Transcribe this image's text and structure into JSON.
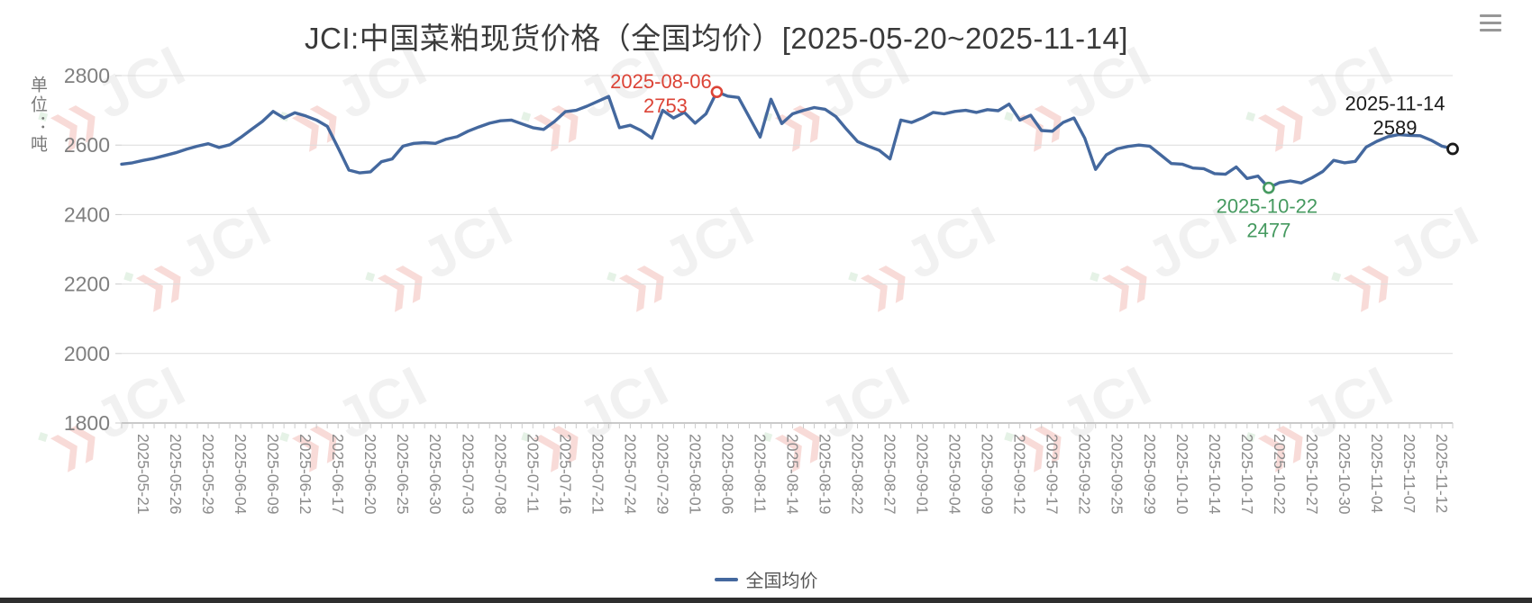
{
  "header": {
    "title": "JCI:中国菜粕现货价格（全国均价）[2025-05-20~2025-11-14]",
    "menu_icon": "hamburger-icon"
  },
  "legend": {
    "label": "全国均价",
    "marker_color": "#44689e"
  },
  "watermark": {
    "text": "JCI",
    "arrow_glyph": "❯❯",
    "accent_glyph": "◆"
  },
  "colors": {
    "line": "#44689e",
    "grid": "#dcdcdc",
    "axis": "#b8b8b8",
    "tick": "#cccccc",
    "y_label": "#7f7f7f",
    "x_label": "#8c8c8c",
    "title": "#3a3a3a",
    "max_annotation": "#dc4437",
    "min_annotation": "#469a60",
    "last_annotation": "#1a1a1a"
  },
  "chart_data": {
    "type": "line",
    "title": "JCI:中国菜粕现货价格（全国均价）[2025-05-20~2025-11-14]",
    "legend_position": "bottom",
    "grid": true,
    "y_axis": {
      "unit": "单位：吨",
      "min": 1800,
      "max": 2800,
      "step": 200,
      "tick_labels": [
        "1800",
        "2000",
        "2200",
        "2400",
        "2600",
        "2800"
      ]
    },
    "x_tick_labels": [
      "2025-05-21",
      "2025-05-26",
      "2025-05-29",
      "2025-06-04",
      "2025-06-09",
      "2025-06-12",
      "2025-06-17",
      "2025-06-20",
      "2025-06-25",
      "2025-06-30",
      "2025-07-03",
      "2025-07-08",
      "2025-07-11",
      "2025-07-16",
      "2025-07-21",
      "2025-07-24",
      "2025-07-29",
      "2025-08-01",
      "2025-08-06",
      "2025-08-11",
      "2025-08-14",
      "2025-08-19",
      "2025-08-22",
      "2025-08-27",
      "2025-09-01",
      "2025-09-04",
      "2025-09-09",
      "2025-09-12",
      "2025-09-17",
      "2025-09-22",
      "2025-09-25",
      "2025-09-29",
      "2025-10-10",
      "2025-10-14",
      "2025-10-17",
      "2025-10-22",
      "2025-10-27",
      "2025-10-30",
      "2025-11-04",
      "2025-11-07",
      "2025-11-12"
    ],
    "x_label_start_index": 1,
    "x_label_step": 3,
    "series": [
      {
        "name": "全国均价",
        "color": "#44689e",
        "values": [
          2545,
          2549,
          2556,
          2562,
          2570,
          2578,
          2588,
          2597,
          2604,
          2593,
          2601,
          2622,
          2645,
          2668,
          2697,
          2678,
          2693,
          2684,
          2672,
          2654,
          2592,
          2528,
          2520,
          2523,
          2552,
          2560,
          2597,
          2605,
          2607,
          2605,
          2617,
          2624,
          2640,
          2652,
          2663,
          2670,
          2672,
          2661,
          2650,
          2645,
          2668,
          2696,
          2700,
          2712,
          2726,
          2740,
          2650,
          2657,
          2642,
          2620,
          2700,
          2678,
          2694,
          2663,
          2690,
          2753,
          2741,
          2737,
          2680,
          2623,
          2732,
          2662,
          2690,
          2700,
          2708,
          2703,
          2682,
          2645,
          2610,
          2597,
          2585,
          2560,
          2672,
          2665,
          2678,
          2694,
          2690,
          2697,
          2700,
          2694,
          2702,
          2699,
          2718,
          2672,
          2686,
          2642,
          2640,
          2665,
          2678,
          2620,
          2530,
          2572,
          2589,
          2596,
          2600,
          2597,
          2572,
          2547,
          2545,
          2534,
          2532,
          2518,
          2516,
          2537,
          2504,
          2511,
          2477,
          2492,
          2497,
          2491,
          2506,
          2524,
          2556,
          2549,
          2553,
          2594,
          2611,
          2624,
          2630,
          2628,
          2627,
          2614,
          2597,
          2589
        ]
      }
    ],
    "annotations": {
      "max": {
        "date": "2025-08-06",
        "value": 2753,
        "index": 55,
        "color": "#dc4437"
      },
      "min": {
        "date": "2025-10-22",
        "value": 2477,
        "index": 106,
        "color": "#469a60"
      },
      "last": {
        "date": "2025-11-14",
        "value": 2589,
        "index": 123,
        "color": "#1a1a1a"
      }
    }
  }
}
